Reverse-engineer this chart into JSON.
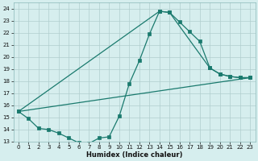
{
  "xlabel": "Humidex (Indice chaleur)",
  "xlim": [
    -0.5,
    23.5
  ],
  "ylim": [
    13,
    24.5
  ],
  "yticks": [
    13,
    14,
    15,
    16,
    17,
    18,
    19,
    20,
    21,
    22,
    23,
    24
  ],
  "xticks": [
    0,
    1,
    2,
    3,
    4,
    5,
    6,
    7,
    8,
    9,
    10,
    11,
    12,
    13,
    14,
    15,
    16,
    17,
    18,
    19,
    20,
    21,
    22,
    23
  ],
  "line_color": "#1a7a6e",
  "bg_color": "#d6eeee",
  "grid_color": "#b0cece",
  "curve1_x": [
    0,
    1,
    2,
    3,
    4,
    5,
    6,
    7,
    8,
    9,
    10,
    11,
    12,
    13,
    14,
    15,
    16,
    17,
    18,
    19,
    20,
    21,
    22,
    23
  ],
  "curve1_y": [
    15.5,
    14.9,
    14.1,
    14.0,
    13.7,
    13.3,
    12.9,
    12.85,
    13.3,
    13.4,
    15.1,
    17.8,
    19.7,
    21.9,
    23.8,
    23.7,
    22.9,
    22.1,
    21.3,
    19.1,
    18.6,
    18.4,
    18.3,
    18.3
  ],
  "curve2_x": [
    0,
    23
  ],
  "curve2_y": [
    15.5,
    18.3
  ],
  "curve3_x": [
    0,
    14,
    15,
    19,
    20,
    21,
    22,
    23
  ],
  "curve3_y": [
    15.5,
    23.8,
    23.7,
    19.1,
    18.6,
    18.4,
    18.3,
    18.3
  ]
}
